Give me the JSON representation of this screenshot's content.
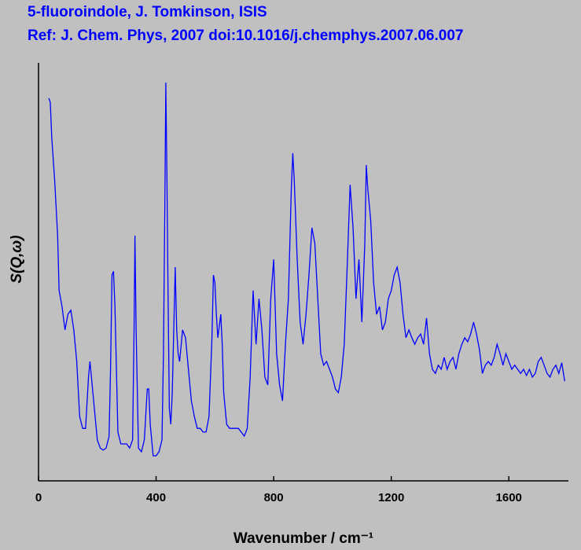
{
  "chart_data": {
    "type": "line",
    "title": "5-fluoroindole, J. Tomkinson, ISIS",
    "subtitle": "Ref: J. Chem. Phys, 2007 doi:10.1016/j.chemphys.2007.06.007",
    "x_label": "Wavenumber / cm⁻¹",
    "y_label": "S(Q,ω)",
    "xlim": [
      0,
      1800
    ],
    "xticks": [
      0,
      400,
      800,
      1200,
      1600
    ],
    "ylim": [
      0,
      100
    ],
    "series": [
      {
        "color": "#0000ff",
        "x": [
          35,
          40,
          45,
          55,
          65,
          70,
          80,
          90,
          100,
          110,
          120,
          130,
          140,
          150,
          160,
          170,
          175,
          180,
          190,
          200,
          210,
          220,
          230,
          240,
          245,
          250,
          255,
          260,
          265,
          270,
          280,
          290,
          300,
          310,
          320,
          325,
          328,
          332,
          340,
          350,
          360,
          370,
          375,
          380,
          390,
          400,
          410,
          420,
          425,
          430,
          433,
          437,
          440,
          445,
          450,
          455,
          460,
          465,
          470,
          475,
          480,
          490,
          500,
          510,
          520,
          530,
          540,
          550,
          560,
          570,
          580,
          590,
          595,
          600,
          605,
          610,
          620,
          625,
          630,
          640,
          650,
          660,
          680,
          700,
          710,
          720,
          730,
          740,
          750,
          760,
          770,
          780,
          790,
          800,
          810,
          820,
          830,
          840,
          850,
          860,
          865,
          870,
          880,
          890,
          900,
          910,
          920,
          930,
          940,
          950,
          960,
          970,
          980,
          990,
          1000,
          1010,
          1020,
          1030,
          1040,
          1050,
          1060,
          1070,
          1080,
          1090,
          1100,
          1110,
          1115,
          1120,
          1130,
          1140,
          1150,
          1160,
          1170,
          1180,
          1190,
          1200,
          1210,
          1220,
          1230,
          1240,
          1250,
          1260,
          1270,
          1280,
          1290,
          1300,
          1310,
          1320,
          1330,
          1340,
          1350,
          1360,
          1370,
          1380,
          1390,
          1400,
          1410,
          1420,
          1430,
          1440,
          1450,
          1460,
          1470,
          1480,
          1490,
          1500,
          1510,
          1520,
          1530,
          1540,
          1550,
          1560,
          1570,
          1580,
          1590,
          1600,
          1610,
          1620,
          1630,
          1640,
          1650,
          1660,
          1670,
          1680,
          1690,
          1700,
          1710,
          1720,
          1730,
          1740,
          1750,
          1760,
          1770,
          1780,
          1790
        ],
        "values": [
          93.3,
          92.3,
          83.7,
          73.2,
          59.8,
          46.4,
          42.5,
          36.8,
          40.6,
          41.6,
          36.8,
          29.1,
          15.7,
          12.8,
          12.8,
          25.3,
          29.1,
          25.3,
          17.6,
          10.0,
          8.0,
          7.5,
          8.0,
          10.9,
          27.2,
          50.2,
          51.1,
          42.5,
          27.2,
          11.9,
          9.0,
          9.0,
          9.0,
          8.0,
          10.0,
          36.8,
          59.8,
          36.8,
          8.0,
          7.1,
          10.0,
          22.4,
          22.4,
          13.8,
          6.1,
          6.1,
          7.1,
          10.0,
          31.0,
          69.3,
          97.1,
          73.2,
          50.2,
          17.6,
          13.8,
          21.5,
          36.8,
          52.1,
          36.8,
          31.0,
          29.1,
          36.8,
          34.9,
          27.2,
          19.5,
          15.7,
          12.8,
          12.8,
          11.9,
          11.9,
          15.7,
          34.9,
          50.2,
          48.3,
          40.6,
          34.9,
          40.6,
          33.3,
          21.5,
          13.8,
          12.8,
          12.8,
          12.8,
          10.9,
          12.8,
          25.3,
          46.4,
          33.3,
          44.4,
          36.8,
          25.3,
          23.4,
          44.4,
          54.0,
          31.0,
          23.4,
          19.5,
          33.3,
          44.4,
          71.3,
          79.9,
          73.2,
          54.0,
          38.7,
          33.3,
          40.6,
          50.2,
          61.7,
          57.9,
          44.4,
          31.0,
          28.2,
          29.1,
          27.2,
          25.3,
          22.4,
          21.5,
          25.3,
          33.3,
          52.1,
          72.2,
          61.7,
          44.4,
          54.0,
          38.7,
          57.9,
          77.0,
          71.3,
          63.6,
          48.3,
          40.6,
          42.5,
          36.8,
          38.7,
          44.4,
          46.4,
          50.2,
          52.1,
          48.3,
          40.6,
          34.9,
          36.8,
          34.9,
          33.3,
          34.9,
          35.8,
          33.3,
          39.7,
          31.0,
          27.2,
          26.2,
          28.2,
          27.2,
          30.1,
          27.2,
          29.1,
          30.1,
          27.2,
          31.0,
          33.3,
          34.9,
          33.9,
          35.8,
          38.7,
          35.8,
          32.0,
          26.2,
          28.2,
          29.1,
          28.2,
          30.1,
          33.3,
          31.0,
          28.2,
          31.0,
          29.1,
          27.2,
          28.2,
          27.2,
          26.2,
          27.2,
          25.7,
          27.2,
          25.3,
          26.2,
          29.1,
          30.1,
          28.2,
          26.2,
          25.3,
          27.2,
          28.2,
          26.2,
          28.8,
          24.3
        ]
      }
    ]
  }
}
